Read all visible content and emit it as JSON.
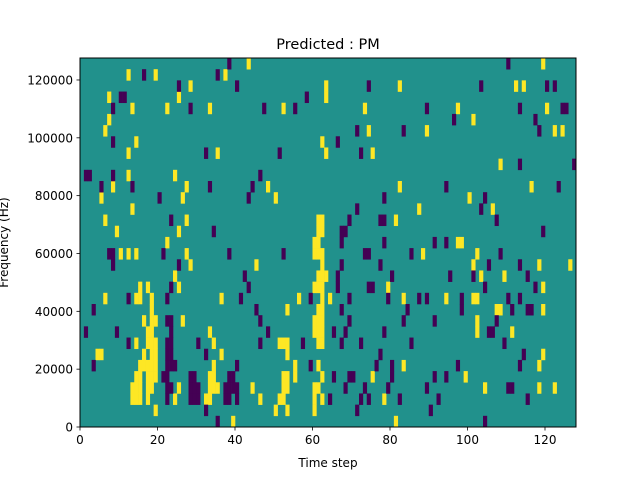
{
  "chart_data": {
    "type": "heatmap",
    "title": "Predicted : PM",
    "xlabel": "Time step",
    "ylabel": "Frequency (Hz)",
    "xlim": [
      0,
      128
    ],
    "ylim": [
      0,
      127600
    ],
    "n_time_steps": 128,
    "n_freq_bins": 33,
    "x_ticks": [
      "0",
      "20",
      "40",
      "60",
      "80",
      "100",
      "120"
    ],
    "x_tick_values": [
      0,
      20,
      40,
      60,
      80,
      100,
      120
    ],
    "y_ticks": [
      "0",
      "20000",
      "40000",
      "60000",
      "80000",
      "100000",
      "120000"
    ],
    "y_tick_values": [
      0,
      20000,
      40000,
      60000,
      80000,
      100000,
      120000
    ],
    "grid": false,
    "colors": {
      "background": "#21918c",
      "high": "#fde725",
      "low": "#440154"
    },
    "background_value": "mid",
    "high_cells_by_freq_bin": {
      "0": [
        39,
        81
      ],
      "1": [
        19,
        50,
        53,
        60
      ],
      "2": [
        13,
        14,
        15,
        17,
        24,
        32,
        33,
        46,
        51,
        52,
        60,
        62,
        78
      ],
      "3": [
        13,
        14,
        15,
        17,
        18,
        25,
        33,
        34,
        35,
        44,
        52,
        53,
        60,
        61,
        104,
        118,
        122
      ],
      "4": [
        14,
        15,
        17,
        18,
        19,
        33,
        34,
        52,
        53,
        55,
        62,
        75,
        99
      ],
      "5": [
        15,
        16,
        17,
        18,
        19,
        34,
        55,
        61,
        83,
        118
      ],
      "6": [
        4,
        5,
        16,
        18,
        19,
        36,
        53,
        119
      ],
      "7": [
        14,
        17,
        18,
        19,
        34,
        51,
        52,
        53,
        61,
        62
      ],
      "8": [
        17,
        18,
        33,
        60,
        61,
        62,
        102,
        111
      ],
      "9": [
        16,
        18,
        19,
        26,
        60,
        61,
        62,
        102
      ],
      "10": [
        18,
        53,
        61,
        62,
        107,
        108,
        119
      ],
      "11": [
        6,
        14,
        15,
        18,
        36,
        56,
        62,
        64,
        83,
        94,
        101,
        102
      ],
      "12": [
        15,
        17,
        25,
        60,
        61,
        62,
        79,
        119
      ],
      "13": [
        24,
        61,
        62,
        63,
        103,
        109
      ],
      "14": [
        28,
        45,
        62,
        101,
        118,
        126
      ],
      "15": [
        10,
        12,
        14,
        27,
        60,
        61,
        62,
        88,
        102
      ],
      "16": [
        22,
        60,
        61,
        97,
        98
      ],
      "17": [
        9,
        25,
        61,
        62
      ],
      "18": [
        6,
        27,
        61,
        62,
        81
      ],
      "19": [
        13,
        87,
        106
      ],
      "20": [
        5,
        26,
        50,
        100
      ],
      "21": [
        8,
        27,
        48,
        82,
        116
      ],
      "22": [
        12,
        24
      ],
      "23": [
        108
      ],
      "24": [
        12,
        35,
        63,
        75
      ],
      "25": [
        14,
        62
      ],
      "26": [
        6,
        74,
        89,
        122,
        124
      ],
      "27": [
        7,
        101
      ],
      "28": [
        13,
        22,
        33,
        52,
        73,
        97,
        120
      ],
      "29": [
        7,
        25,
        63
      ],
      "30": [
        28,
        63,
        82,
        112,
        114
      ],
      "31": [
        12,
        19,
        37
      ],
      "32": [
        43,
        119
      ]
    },
    "low_cells_by_freq_bin": {
      "0": [
        35,
        104
      ],
      "1": [
        32,
        71,
        90
      ],
      "2": [
        22,
        28,
        29,
        30,
        37,
        38,
        40,
        64,
        72,
        74,
        82,
        92,
        115
      ],
      "3": [
        22,
        23,
        28,
        29,
        30,
        37,
        38,
        39,
        40,
        68,
        73,
        79,
        89,
        110,
        111
      ],
      "4": [
        21,
        22,
        28,
        29,
        38,
        39,
        65,
        69,
        70,
        80,
        91,
        94
      ],
      "5": [
        3,
        22,
        23,
        24,
        40,
        59,
        76,
        80,
        97,
        113
      ],
      "6": [
        22,
        23,
        32,
        77,
        114
      ],
      "7": [
        12,
        22,
        23,
        30,
        46,
        57,
        67,
        72,
        85,
        109
      ],
      "8": [
        1,
        9,
        23,
        48,
        65,
        68,
        78,
        105,
        106
      ],
      "9": [
        22,
        23,
        46,
        69,
        83,
        91,
        107
      ],
      "10": [
        3,
        45,
        67,
        84,
        98,
        111,
        115,
        116
      ],
      "11": [
        12,
        22,
        41,
        59,
        69,
        79,
        87,
        89,
        98,
        110,
        113
      ],
      "12": [
        23,
        43,
        66,
        74,
        75,
        104,
        117
      ],
      "13": [
        42,
        66,
        80,
        95,
        101,
        115
      ],
      "14": [
        8,
        25,
        67,
        77,
        105,
        113
      ],
      "15": [
        7,
        8,
        21,
        38,
        52,
        73,
        74,
        85,
        108
      ],
      "16": [
        67,
        78,
        91,
        94
      ],
      "17": [
        34,
        67,
        68,
        119
      ],
      "18": [
        23,
        69,
        77,
        78,
        107
      ],
      "19": [
        71,
        103
      ],
      "20": [
        20,
        43,
        78,
        104
      ],
      "21": [
        5,
        13,
        33,
        44,
        94,
        123
      ],
      "22": [
        1,
        2,
        8,
        46
      ],
      "23": [
        113,
        127
      ],
      "24": [
        32,
        51,
        72
      ],
      "25": [
        8,
        66
      ],
      "26": [
        71,
        83,
        118
      ],
      "27": [
        96,
        117
      ],
      "28": [
        8,
        28,
        47,
        55,
        89,
        113,
        124,
        125
      ],
      "29": [
        10,
        11,
        58
      ],
      "30": [
        25,
        40,
        74,
        103,
        120,
        122
      ],
      "31": [
        16,
        35
      ],
      "32": [
        38,
        110
      ]
    }
  }
}
